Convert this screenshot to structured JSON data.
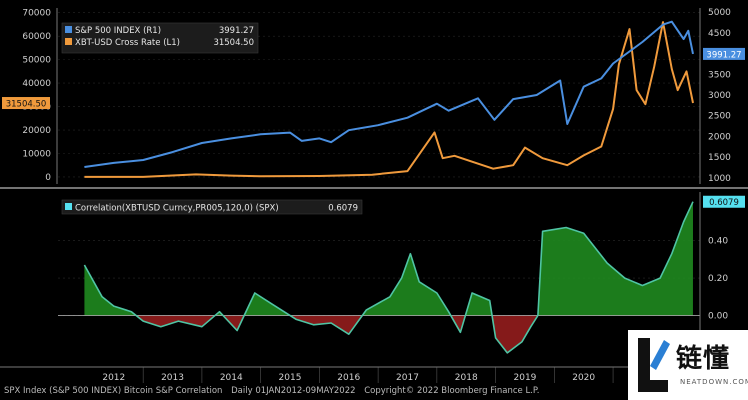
{
  "footer": {
    "left": "SPX Index (S&P 500 INDEX) Bitcoin S&P Correlation",
    "middle": "Daily 01JAN2012-09MAY2022",
    "right": "Copyright© 2022 Bloomberg Finance L.P."
  },
  "watermark": {
    "main": "链懂",
    "sub": "NEATDOWN.COM"
  },
  "colors": {
    "spx": "#4a8fe0",
    "xbt": "#f09a3c",
    "corr": "#4fc4a4",
    "corr_fill_pos": "#1f8a1f",
    "corr_fill_neg": "#8c1b1b",
    "label_cyan": "#55e0f0"
  },
  "chart_data": [
    {
      "type": "line",
      "legend": [
        {
          "name": "S&P 500 INDEX (R1)",
          "value": "3991.27"
        },
        {
          "name": "XBT-USD Cross Rate  (L1)",
          "value": "31504.50"
        }
      ],
      "left_axis": {
        "ylim": [
          -3000,
          72000
        ],
        "ticks": [
          0,
          10000,
          20000,
          30000,
          40000,
          50000,
          60000,
          70000
        ]
      },
      "right_axis": {
        "ylim": [
          850,
          5100
        ],
        "ticks": [
          1000,
          1500,
          2000,
          2500,
          3000,
          3500,
          4000,
          4500,
          5000
        ]
      },
      "last_value_labels": {
        "left": "31504.50",
        "right": "3991.27"
      },
      "series": [
        {
          "name": "S&P 500 INDEX (R1)",
          "axis": "right",
          "points": [
            [
              2012.0,
              1260
            ],
            [
              2012.5,
              1360
            ],
            [
              2013.0,
              1430
            ],
            [
              2013.5,
              1620
            ],
            [
              2014.0,
              1840
            ],
            [
              2014.5,
              1950
            ],
            [
              2015.0,
              2050
            ],
            [
              2015.5,
              2090
            ],
            [
              2015.7,
              1890
            ],
            [
              2016.0,
              1950
            ],
            [
              2016.2,
              1860
            ],
            [
              2016.5,
              2150
            ],
            [
              2017.0,
              2270
            ],
            [
              2017.5,
              2450
            ],
            [
              2018.0,
              2790
            ],
            [
              2018.2,
              2620
            ],
            [
              2018.7,
              2920
            ],
            [
              2018.98,
              2400
            ],
            [
              2019.3,
              2900
            ],
            [
              2019.7,
              3000
            ],
            [
              2020.1,
              3350
            ],
            [
              2020.22,
              2300
            ],
            [
              2020.5,
              3200
            ],
            [
              2020.8,
              3400
            ],
            [
              2021.0,
              3760
            ],
            [
              2021.5,
              4280
            ],
            [
              2021.85,
              4700
            ],
            [
              2022.0,
              4770
            ],
            [
              2022.2,
              4350
            ],
            [
              2022.28,
              4550
            ],
            [
              2022.36,
              3991.27
            ]
          ]
        },
        {
          "name": "XBT-USD Cross Rate  (L1)",
          "axis": "left",
          "points": [
            [
              2012.0,
              5
            ],
            [
              2013.0,
              13
            ],
            [
              2013.9,
              1100
            ],
            [
              2014.5,
              600
            ],
            [
              2015.0,
              300
            ],
            [
              2016.0,
              430
            ],
            [
              2016.9,
              950
            ],
            [
              2017.5,
              2500
            ],
            [
              2017.96,
              19000
            ],
            [
              2018.1,
              8000
            ],
            [
              2018.3,
              9000
            ],
            [
              2018.6,
              6500
            ],
            [
              2018.96,
              3500
            ],
            [
              2019.3,
              5000
            ],
            [
              2019.5,
              12500
            ],
            [
              2019.8,
              8000
            ],
            [
              2020.22,
              5000
            ],
            [
              2020.5,
              9200
            ],
            [
              2020.8,
              13000
            ],
            [
              2021.0,
              29000
            ],
            [
              2021.1,
              48000
            ],
            [
              2021.28,
              63000
            ],
            [
              2021.4,
              37000
            ],
            [
              2021.55,
              31000
            ],
            [
              2021.7,
              47000
            ],
            [
              2021.85,
              66000
            ],
            [
              2022.0,
              46000
            ],
            [
              2022.1,
              37000
            ],
            [
              2022.25,
              45000
            ],
            [
              2022.36,
              31504.5
            ]
          ]
        }
      ]
    },
    {
      "type": "area",
      "legend": [
        {
          "name": "Correlation(XBTUSD Curncy,PR005,120,0) (SPX)",
          "value": "0.6079"
        }
      ],
      "ylim": [
        -0.27,
        0.66
      ],
      "ticks": [
        0.0,
        0.2,
        0.4
      ],
      "tick_labels": [
        "0.00",
        "0.20",
        "0.40"
      ],
      "last_value_label": "0.6079",
      "x_ticks": [
        "2012",
        "2013",
        "2014",
        "2015",
        "2016",
        "2017",
        "2018",
        "2019",
        "2020",
        "2021",
        "2022"
      ],
      "series": [
        {
          "name": "Correlation(XBTUSD Curncy,PR005,120,0) (SPX)",
          "points": [
            [
              2012.0,
              0.27
            ],
            [
              2012.3,
              0.1
            ],
            [
              2012.5,
              0.05
            ],
            [
              2012.8,
              0.02
            ],
            [
              2013.0,
              -0.03
            ],
            [
              2013.3,
              -0.06
            ],
            [
              2013.6,
              -0.03
            ],
            [
              2014.0,
              -0.06
            ],
            [
              2014.3,
              0.02
            ],
            [
              2014.6,
              -0.08
            ],
            [
              2014.9,
              0.12
            ],
            [
              2015.2,
              0.06
            ],
            [
              2015.6,
              -0.02
            ],
            [
              2015.9,
              -0.05
            ],
            [
              2016.2,
              -0.04
            ],
            [
              2016.5,
              -0.1
            ],
            [
              2016.8,
              0.03
            ],
            [
              2017.2,
              0.1
            ],
            [
              2017.4,
              0.2
            ],
            [
              2017.55,
              0.33
            ],
            [
              2017.7,
              0.18
            ],
            [
              2018.0,
              0.12
            ],
            [
              2018.2,
              0.02
            ],
            [
              2018.4,
              -0.09
            ],
            [
              2018.6,
              0.12
            ],
            [
              2018.9,
              0.08
            ],
            [
              2019.0,
              -0.12
            ],
            [
              2019.2,
              -0.2
            ],
            [
              2019.45,
              -0.14
            ],
            [
              2019.6,
              -0.06
            ],
            [
              2019.72,
              0.0
            ],
            [
              2019.8,
              0.45
            ],
            [
              2020.0,
              0.46
            ],
            [
              2020.2,
              0.47
            ],
            [
              2020.5,
              0.44
            ],
            [
              2020.9,
              0.28
            ],
            [
              2021.2,
              0.2
            ],
            [
              2021.5,
              0.16
            ],
            [
              2021.8,
              0.2
            ],
            [
              2022.0,
              0.33
            ],
            [
              2022.2,
              0.5
            ],
            [
              2022.36,
              0.6079
            ]
          ]
        }
      ]
    }
  ]
}
